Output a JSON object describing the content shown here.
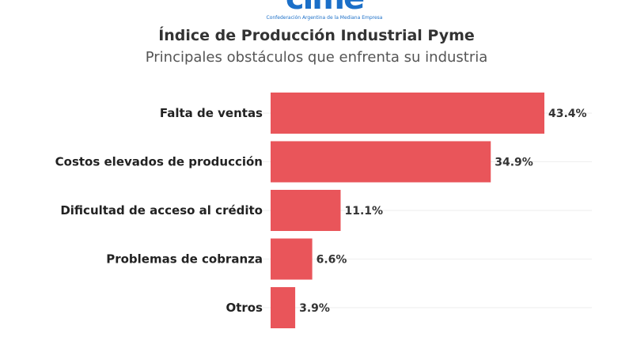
{
  "logo": {
    "mark": "cime",
    "tagline": "Confederación Argentina de la Mediana Empresa"
  },
  "chart_data": {
    "type": "bar",
    "orientation": "horizontal",
    "title": "Índice de Producción Industrial Pyme",
    "subtitle": "Principales obstáculos que enfrenta su industria",
    "categories": [
      "Falta de ventas",
      "Costos elevados de producción",
      "Dificultad de acceso al crédito",
      "Problemas de cobranza",
      "Otros"
    ],
    "values": [
      43.4,
      34.9,
      11.1,
      6.6,
      3.9
    ],
    "labels": [
      "43.4%",
      "34.9%",
      "11.1%",
      "6.6%",
      "3.9%"
    ],
    "unit": "%",
    "xlim": [
      0,
      50
    ],
    "bar_color": "#e9555a",
    "grid": true
  }
}
